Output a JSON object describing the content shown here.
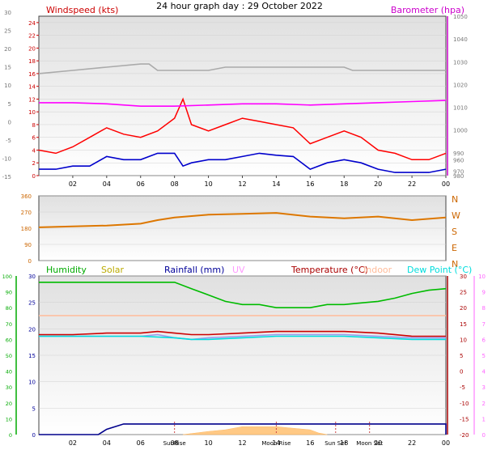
{
  "title": "24 hour graph day : 29 October 2022",
  "chart_data": [
    {
      "type": "line",
      "title": "24 hour graph day : 29 October 2022",
      "ylabel_left": "Windspeed (kts)",
      "ylabel_right": "Barometer (hpa)",
      "y_left_ticks": [
        0,
        2,
        4,
        6,
        8,
        10,
        12,
        14,
        16,
        18,
        20,
        22,
        24
      ],
      "y_far_left_ticks": [
        -15,
        -10,
        -5,
        0,
        5,
        10,
        15,
        20,
        25,
        30
      ],
      "y_right_ticks": [
        980,
        990,
        1000,
        1010,
        1020,
        1030,
        1040,
        1050
      ],
      "y_right_partial_ticks": [
        960,
        970
      ],
      "x_ticks": [
        "02",
        "04",
        "06",
        "08",
        "10",
        "12",
        "14",
        "16",
        "18",
        "20",
        "22",
        "00"
      ],
      "x_hours": [
        2,
        4,
        6,
        8,
        10,
        12,
        14,
        16,
        18,
        20,
        22,
        24
      ],
      "ylim_left": [
        0,
        25
      ],
      "ylim_right": [
        980,
        1050
      ],
      "series": [
        {
          "color": "#ff0000",
          "axis": "left",
          "points": [
            [
              0,
              4
            ],
            [
              1,
              3.5
            ],
            [
              2,
              4.5
            ],
            [
              3,
              6
            ],
            [
              4,
              7.5
            ],
            [
              5,
              6.5
            ],
            [
              6,
              6
            ],
            [
              7,
              7
            ],
            [
              8,
              9
            ],
            [
              8.5,
              12
            ],
            [
              9,
              8
            ],
            [
              10,
              7
            ],
            [
              11,
              8
            ],
            [
              12,
              9
            ],
            [
              13,
              8.5
            ],
            [
              14,
              8
            ],
            [
              15,
              7.5
            ],
            [
              16,
              5
            ],
            [
              17,
              6
            ],
            [
              18,
              7
            ],
            [
              19,
              6
            ],
            [
              20,
              4
            ],
            [
              21,
              3.5
            ],
            [
              22,
              2.5
            ],
            [
              23,
              2.5
            ],
            [
              24,
              3.5
            ]
          ]
        },
        {
          "color": "#0000cc",
          "axis": "left",
          "points": [
            [
              0,
              1
            ],
            [
              1,
              1
            ],
            [
              2,
              1.5
            ],
            [
              3,
              1.5
            ],
            [
              4,
              3
            ],
            [
              5,
              2.5
            ],
            [
              6,
              2.5
            ],
            [
              7,
              3.5
            ],
            [
              8,
              3.5
            ],
            [
              8.5,
              1.5
            ],
            [
              9,
              2
            ],
            [
              10,
              2.5
            ],
            [
              11,
              2.5
            ],
            [
              12,
              3
            ],
            [
              13,
              3.5
            ],
            [
              14,
              3.2
            ],
            [
              15,
              3
            ],
            [
              16,
              1
            ],
            [
              17,
              2
            ],
            [
              18,
              2.5
            ],
            [
              19,
              2
            ],
            [
              20,
              1
            ],
            [
              21,
              0.5
            ],
            [
              22,
              0.5
            ],
            [
              23,
              0.5
            ],
            [
              24,
              1
            ]
          ]
        },
        {
          "color": "#ff00ff",
          "axis": "right",
          "points": [
            [
              0,
              1012
            ],
            [
              2,
              1012
            ],
            [
              4,
              1011.5
            ],
            [
              6,
              1010.5
            ],
            [
              8,
              1010.5
            ],
            [
              10,
              1011
            ],
            [
              12,
              1011.5
            ],
            [
              14,
              1011.5
            ],
            [
              16,
              1011
            ],
            [
              18,
              1011.5
            ],
            [
              20,
              1012
            ],
            [
              22,
              1012.5
            ],
            [
              24,
              1013
            ]
          ]
        },
        {
          "color": "#aaaaaa",
          "axis": "left",
          "points": [
            [
              0,
              16
            ],
            [
              2,
              16.5
            ],
            [
              4,
              17
            ],
            [
              6,
              17.5
            ],
            [
              6.5,
              17.5
            ],
            [
              7,
              16.5
            ],
            [
              9,
              16.5
            ],
            [
              10,
              16.5
            ],
            [
              11,
              17
            ],
            [
              12,
              17
            ],
            [
              13,
              17
            ],
            [
              14,
              17
            ],
            [
              16,
              17
            ],
            [
              18,
              17
            ],
            [
              18.5,
              16.5
            ],
            [
              19,
              16.5
            ],
            [
              24,
              16.5
            ]
          ]
        }
      ]
    },
    {
      "type": "scatter",
      "ytick_labels": [
        "360",
        "270",
        "180",
        "90",
        "0"
      ],
      "y_ticks": [
        360,
        270,
        180,
        90,
        0
      ],
      "compass_labels": [
        "N",
        "W",
        "S",
        "E",
        "N"
      ],
      "ylim": [
        0,
        360
      ],
      "series": [
        {
          "color": "#dd7700",
          "points": [
            [
              0,
              185
            ],
            [
              2,
              190
            ],
            [
              4,
              195
            ],
            [
              6,
              205
            ],
            [
              7,
              225
            ],
            [
              8,
              240
            ],
            [
              10,
              255
            ],
            [
              12,
              260
            ],
            [
              14,
              265
            ],
            [
              16,
              245
            ],
            [
              18,
              235
            ],
            [
              20,
              245
            ],
            [
              22,
              225
            ],
            [
              24,
              240
            ]
          ]
        }
      ]
    },
    {
      "type": "area",
      "legend": [
        {
          "label": "Humidity",
          "color": "#00aa00"
        },
        {
          "label": "Solar",
          "color": "#bbaa00"
        },
        {
          "label": "Rainfall (mm)",
          "color": "#000099"
        },
        {
          "label": "UV",
          "color": "#ff99ff"
        },
        {
          "label": "Temperature (°C)",
          "color": "#aa0000"
        },
        {
          "label": "Indoor",
          "color": "#ffbb99"
        },
        {
          "label": "Dew Point (°C)",
          "color": "#00dddd"
        }
      ],
      "y_humidity_ticks": [
        0,
        10,
        20,
        30,
        40,
        50,
        60,
        70,
        80,
        90,
        100
      ],
      "y_rain_ticks": [
        0,
        5,
        10,
        15,
        20,
        25,
        30
      ],
      "y_temp_ticks": [
        -20,
        -15,
        -10,
        -5,
        0,
        5,
        10,
        15,
        20,
        25,
        30
      ],
      "y_uv_ticks": [
        0,
        1,
        2,
        3,
        4,
        5,
        6,
        7,
        8,
        9,
        10
      ],
      "x_ticks": [
        "02",
        "04",
        "06",
        "08",
        "10",
        "12",
        "14",
        "16",
        "18",
        "20",
        "22",
        "00"
      ],
      "x_hours": [
        2,
        4,
        6,
        8,
        10,
        12,
        14,
        16,
        18,
        20,
        22,
        24
      ],
      "annotations": [
        {
          "label": "SunRise",
          "hour": 8
        },
        {
          "label": "Moon Rise",
          "hour": 14
        },
        {
          "label": "Sun Set",
          "hour": 17.5
        },
        {
          "label": "Moon Set",
          "hour": 19.5
        }
      ],
      "series": [
        {
          "color": "#00bb00",
          "axis": "temp",
          "points": [
            [
              0,
              28
            ],
            [
              2,
              28
            ],
            [
              4,
              28
            ],
            [
              6,
              28
            ],
            [
              8,
              28
            ],
            [
              9,
              26
            ],
            [
              10,
              24
            ],
            [
              11,
              22
            ],
            [
              12,
              21
            ],
            [
              13,
              21
            ],
            [
              14,
              20
            ],
            [
              15,
              20
            ],
            [
              16,
              20
            ],
            [
              17,
              21
            ],
            [
              18,
              21
            ],
            [
              19,
              21.5
            ],
            [
              20,
              22
            ],
            [
              21,
              23
            ],
            [
              22,
              24.5
            ],
            [
              23,
              25.5
            ],
            [
              24,
              26
            ]
          ]
        },
        {
          "color": "#cc0000",
          "axis": "temp",
          "points": [
            [
              0,
              11.5
            ],
            [
              2,
              11.5
            ],
            [
              4,
              12
            ],
            [
              6,
              12
            ],
            [
              7,
              12.5
            ],
            [
              8,
              12
            ],
            [
              9,
              11.5
            ],
            [
              10,
              11.5
            ],
            [
              12,
              12
            ],
            [
              14,
              12.5
            ],
            [
              16,
              12.5
            ],
            [
              18,
              12.5
            ],
            [
              20,
              12
            ],
            [
              22,
              11
            ],
            [
              24,
              11
            ]
          ]
        },
        {
          "color": "#9999ee",
          "axis": "temp",
          "points": [
            [
              0,
              11
            ],
            [
              2,
              11
            ],
            [
              4,
              11
            ],
            [
              6,
              11
            ],
            [
              7,
              11.5
            ],
            [
              8,
              10.5
            ],
            [
              9,
              10
            ],
            [
              10,
              10.5
            ],
            [
              12,
              11
            ],
            [
              14,
              11.5
            ],
            [
              16,
              11.5
            ],
            [
              18,
              11.5
            ],
            [
              20,
              11
            ],
            [
              22,
              10.5
            ],
            [
              24,
              10.5
            ]
          ]
        },
        {
          "color": "#00dddd",
          "axis": "temp",
          "points": [
            [
              0,
              11
            ],
            [
              2,
              11
            ],
            [
              4,
              11
            ],
            [
              6,
              11
            ],
            [
              8,
              10.5
            ],
            [
              9,
              10
            ],
            [
              10,
              10
            ],
            [
              12,
              10.5
            ],
            [
              14,
              11
            ],
            [
              16,
              11
            ],
            [
              18,
              11
            ],
            [
              20,
              10.5
            ],
            [
              22,
              10
            ],
            [
              24,
              10
            ]
          ]
        },
        {
          "color": "#ffbb99",
          "axis": "temp",
          "points": [
            [
              0,
              17.5
            ],
            [
              4,
              17.5
            ],
            [
              8,
              17.5
            ],
            [
              12,
              17.5
            ],
            [
              16,
              17.5
            ],
            [
              20,
              17.5
            ],
            [
              24,
              17.5
            ]
          ]
        },
        {
          "color": "#00008c",
          "axis": "rain",
          "points": [
            [
              0,
              0
            ],
            [
              3.5,
              0
            ],
            [
              4,
              1
            ],
            [
              5,
              2
            ],
            [
              24,
              2
            ],
            [
              24,
              0
            ]
          ]
        },
        {
          "color": "#ffbb66",
          "axis": "temp",
          "points": [
            [
              8.5,
              -20
            ],
            [
              10,
              -19
            ],
            [
              11,
              -18.5
            ],
            [
              12,
              -17.5
            ],
            [
              13,
              -17.5
            ],
            [
              14,
              -17.5
            ],
            [
              15,
              -18
            ],
            [
              16,
              -18.5
            ],
            [
              16.5,
              -19.5
            ],
            [
              17,
              -20
            ]
          ]
        }
      ]
    }
  ]
}
